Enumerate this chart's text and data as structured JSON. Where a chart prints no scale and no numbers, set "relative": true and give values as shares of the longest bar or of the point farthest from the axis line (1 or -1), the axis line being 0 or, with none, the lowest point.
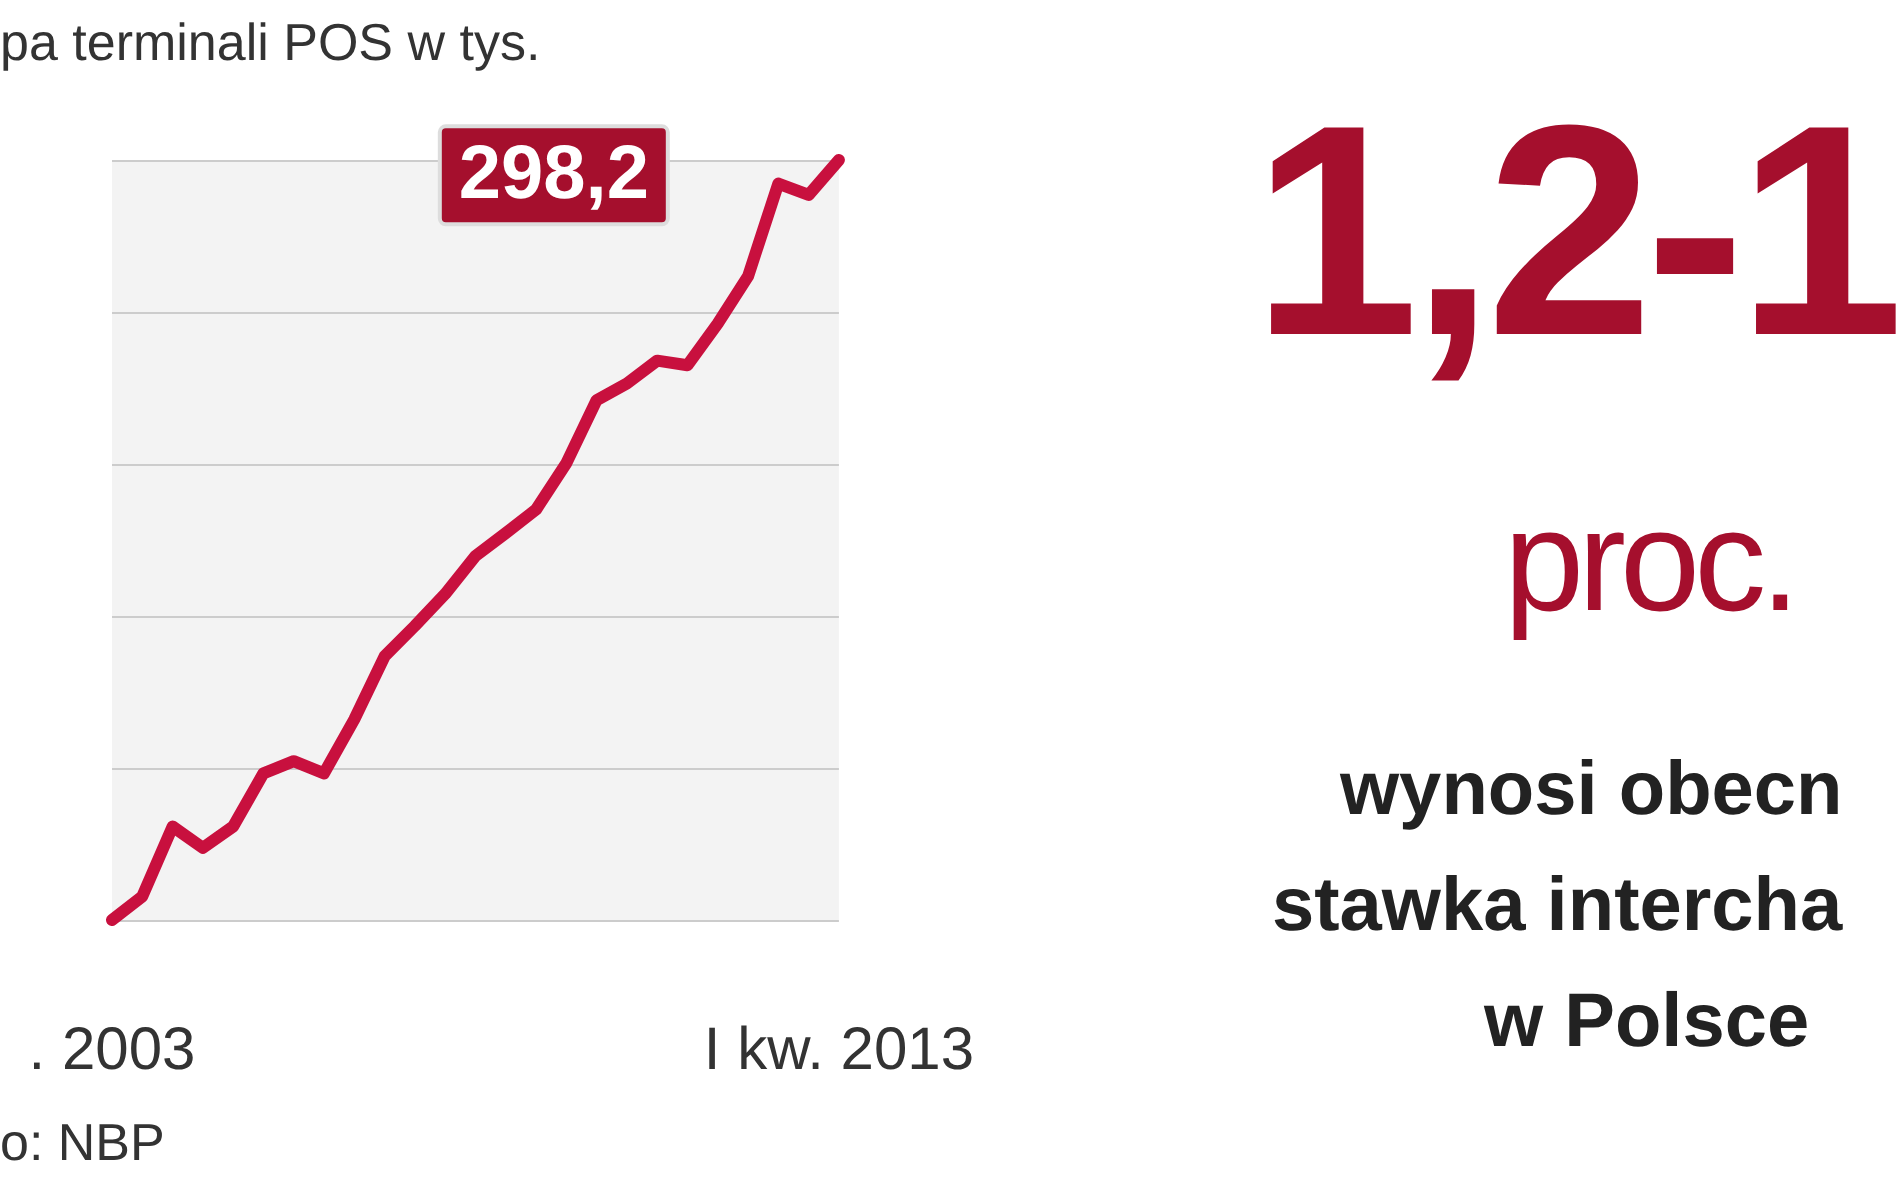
{
  "chart_data": {
    "type": "line",
    "title": "pa terminali POS w tys.",
    "relative": true,
    "grid": "y",
    "marker": "none",
    "line_style": "solid",
    "categories": [
      ". 2003",
      null,
      null,
      null,
      null,
      null,
      null,
      null,
      null,
      null,
      null,
      null,
      null,
      null,
      null,
      null,
      null,
      null,
      null,
      null,
      null,
      null,
      null,
      null,
      "I kw. 2013"
    ],
    "series": [
      {
        "color": "#c8103e",
        "values": [
          0,
          0.031,
          0.123,
          0.095,
          0.123,
          0.193,
          0.209,
          0.193,
          0.264,
          0.347,
          0.387,
          0.429,
          0.479,
          0.509,
          0.54,
          0.601,
          0.684,
          0.706,
          0.736,
          0.73,
          0.785,
          0.847,
          0.969,
          0.954,
          1
        ]
      }
    ],
    "annotations": [
      "298,2",
      "o: NBP",
      "1,2-1",
      "proc.",
      "wynosi obecn",
      "stawka intercha",
      "w Polsce"
    ]
  }
}
